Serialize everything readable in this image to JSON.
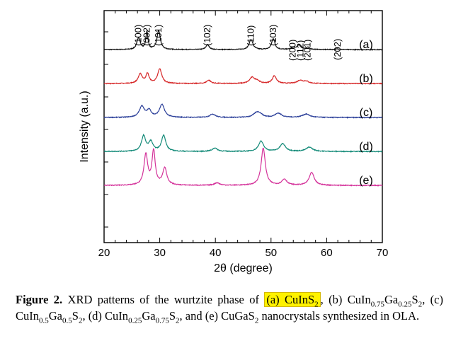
{
  "chart_data": {
    "type": "line",
    "xlabel": "2θ (degree)",
    "ylabel": "Intensity (a.u.)",
    "xlim": [
      20,
      70
    ],
    "x_ticks": [
      20,
      30,
      40,
      50,
      60,
      70
    ],
    "peak_labels": [
      {
        "text": "(100)",
        "x": 26.2
      },
      {
        "text": "(002)",
        "x": 27.7
      },
      {
        "text": "(101)",
        "x": 29.8
      },
      {
        "text": "(102)",
        "x": 38.6
      },
      {
        "text": "(110)",
        "x": 46.4
      },
      {
        "text": "(103)",
        "x": 50.4
      },
      {
        "text": "(200)",
        "x": 53.9
      },
      {
        "text": "(112)",
        "x": 55.3
      },
      {
        "text": "(201)",
        "x": 56.6
      },
      {
        "text": "(202)",
        "x": 62.0
      }
    ],
    "series": [
      {
        "name": "(a)",
        "color": "#111111",
        "baseline": 0.92,
        "peaks": [
          [
            26.2,
            0.28,
            0.35
          ],
          [
            27.7,
            0.42,
            0.22
          ],
          [
            29.8,
            0.45,
            0.35
          ],
          [
            38.6,
            0.12,
            0.35
          ],
          [
            46.4,
            0.24,
            0.4
          ],
          [
            50.4,
            0.26,
            0.35
          ],
          [
            53.9,
            0.04,
            0.4
          ],
          [
            55.0,
            0.1,
            0.45
          ],
          [
            56.6,
            0.05,
            0.45
          ],
          [
            62.0,
            0.015,
            0.5
          ]
        ]
      },
      {
        "name": "(b)",
        "color": "#d62728",
        "baseline": 1.72,
        "peaks": [
          [
            26.5,
            0.22,
            0.45
          ],
          [
            27.8,
            0.22,
            0.35
          ],
          [
            30.0,
            0.34,
            0.45
          ],
          [
            38.8,
            0.08,
            0.45
          ],
          [
            46.6,
            0.14,
            0.55
          ],
          [
            47.5,
            0.06,
            0.5
          ],
          [
            50.6,
            0.18,
            0.45
          ],
          [
            55.2,
            0.07,
            0.6
          ],
          [
            56.3,
            0.05,
            0.6
          ]
        ]
      },
      {
        "name": "(c)",
        "color": "#2b3f99",
        "baseline": 2.52,
        "peaks": [
          [
            26.8,
            0.26,
            0.55
          ],
          [
            28.1,
            0.16,
            0.45
          ],
          [
            30.4,
            0.3,
            0.55
          ],
          [
            39.5,
            0.08,
            0.6
          ],
          [
            47.4,
            0.1,
            0.7
          ],
          [
            48.0,
            0.06,
            0.6
          ],
          [
            51.3,
            0.1,
            0.7
          ],
          [
            56.3,
            0.08,
            0.8
          ]
        ]
      },
      {
        "name": "(d)",
        "color": "#138a78",
        "baseline": 3.32,
        "peaks": [
          [
            27.1,
            0.36,
            0.45
          ],
          [
            28.4,
            0.22,
            0.45
          ],
          [
            30.7,
            0.38,
            0.45
          ],
          [
            39.9,
            0.08,
            0.55
          ],
          [
            48.2,
            0.24,
            0.55
          ],
          [
            52.1,
            0.18,
            0.6
          ],
          [
            56.9,
            0.1,
            0.7
          ]
        ]
      },
      {
        "name": "(e)",
        "color": "#d4329a",
        "baseline": 4.12,
        "peaks": [
          [
            27.5,
            0.72,
            0.4
          ],
          [
            28.9,
            0.8,
            0.35
          ],
          [
            30.9,
            0.4,
            0.45
          ],
          [
            40.3,
            0.06,
            0.55
          ],
          [
            48.6,
            0.88,
            0.45
          ],
          [
            52.4,
            0.14,
            0.55
          ],
          [
            57.3,
            0.3,
            0.55
          ]
        ]
      }
    ]
  },
  "caption": {
    "label": "Figure 2.",
    "text_1": " XRD patterns of the wurtzite phase of ",
    "hl_a": "(a) CuInS",
    "hl_a_sub": "2",
    "t_b1": ", (b) CuIn",
    "t_b_sub1": "0.75",
    "t_b2": "Ga",
    "t_b_sub2": "0.25",
    "t_b3": "S",
    "t_b_sub3": "2",
    "t_c1": ", (c) CuIn",
    "t_c_sub1": "0.5",
    "t_c2": "Ga",
    "t_c_sub2": "0.5",
    "t_c3": "S",
    "t_c_sub3": "2",
    "t_d1": ", (d) CuIn",
    "t_d_sub1": "0.25",
    "t_d2": "Ga",
    "t_d_sub2": "0.75",
    "t_d3": "S",
    "t_d_sub3": "2",
    "t_e1": ", and (e) CuGaS",
    "t_e_sub": "2",
    "t_end": " nanocrystals synthesized in OLA."
  }
}
